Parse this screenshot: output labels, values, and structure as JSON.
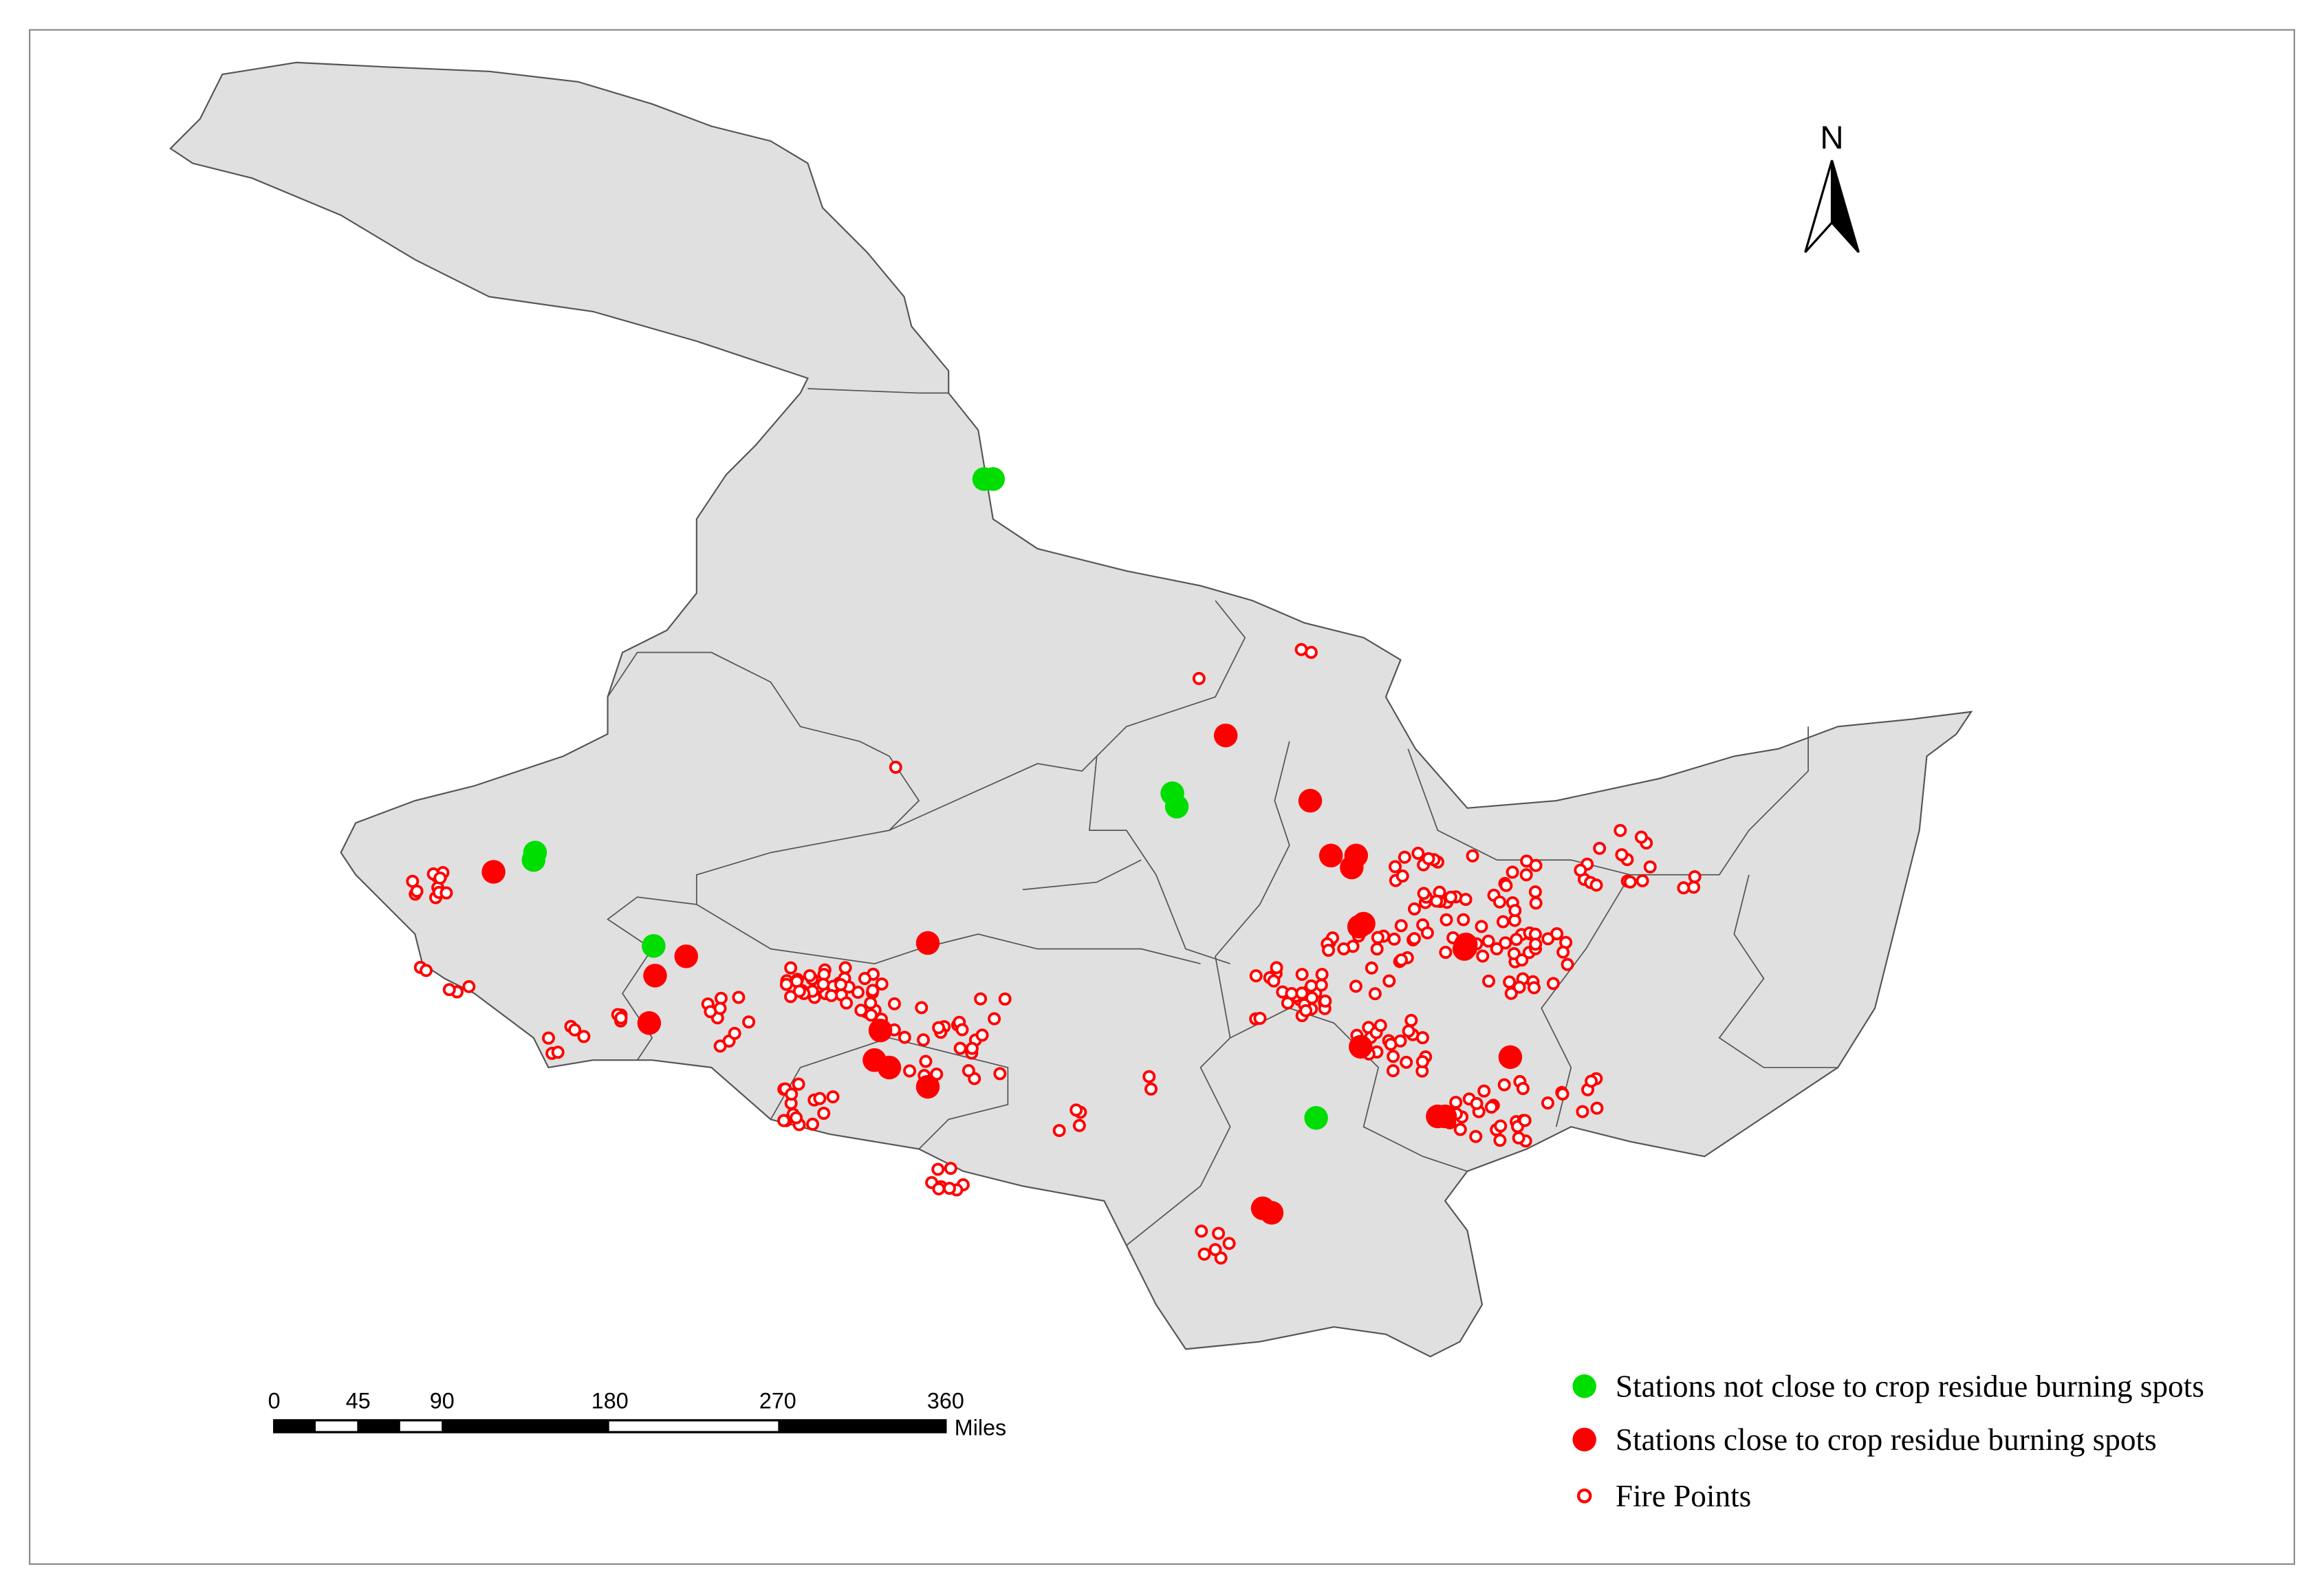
{
  "north_arrow": "N",
  "scale_bar": {
    "ticks": [
      0,
      45,
      90,
      180,
      270,
      360
    ],
    "unit": "Miles"
  },
  "legend": {
    "items": [
      {
        "label": "Stations not close to crop residue burning spots",
        "color": "#00dd00"
      },
      {
        "label": "Stations close to crop residue burning spots",
        "color": "#ff0000"
      },
      {
        "label": "Fire Points",
        "color": "#ff0000"
      }
    ]
  }
}
